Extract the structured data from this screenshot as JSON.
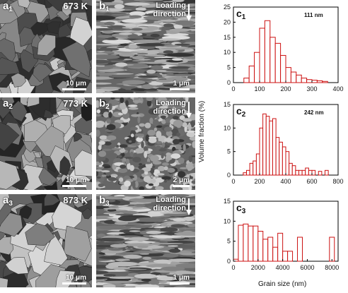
{
  "panels_a": [
    {
      "label": "a",
      "sub": "1",
      "temp": "673 K",
      "scalebar": "10 μm"
    },
    {
      "label": "a",
      "sub": "2",
      "temp": "773 K",
      "scalebar": "10 μm"
    },
    {
      "label": "a",
      "sub": "3",
      "temp": "873 K",
      "scalebar": "10 μm"
    }
  ],
  "panels_b": [
    {
      "label": "b",
      "sub": "1",
      "loading_line1": "Loading",
      "loading_line2": "direction",
      "scalebar": "1 μm"
    },
    {
      "label": "b",
      "sub": "2",
      "loading_line1": "Loading",
      "loading_line2": "direction",
      "scalebar": "2 μm"
    },
    {
      "label": "b",
      "sub": "3",
      "loading_line1": "Loading",
      "loading_line2": "direction",
      "scalebar": "1 μm"
    }
  ],
  "shared_ylabel": "Volume fraction (%)",
  "shared_xlabel": "Grain size (nm)",
  "chart_data": [
    {
      "type": "bar",
      "label": "c",
      "sub": "1",
      "annotation": "111 nm",
      "xlim": [
        0,
        400
      ],
      "ylim": [
        0,
        25
      ],
      "xticks": [
        0,
        100,
        200,
        300,
        400
      ],
      "yticks": [
        0,
        5,
        10,
        15,
        20,
        25
      ],
      "bin_width": 20,
      "bins": [
        {
          "x": 40,
          "v": 1.5
        },
        {
          "x": 60,
          "v": 5.5
        },
        {
          "x": 80,
          "v": 10
        },
        {
          "x": 100,
          "v": 18
        },
        {
          "x": 120,
          "v": 20.5
        },
        {
          "x": 140,
          "v": 15
        },
        {
          "x": 160,
          "v": 13
        },
        {
          "x": 180,
          "v": 9
        },
        {
          "x": 200,
          "v": 5
        },
        {
          "x": 220,
          "v": 3.5
        },
        {
          "x": 240,
          "v": 2.5
        },
        {
          "x": 260,
          "v": 1.5
        },
        {
          "x": 280,
          "v": 1
        },
        {
          "x": 300,
          "v": 0.8
        },
        {
          "x": 320,
          "v": 0.6
        },
        {
          "x": 340,
          "v": 0.4
        }
      ]
    },
    {
      "type": "bar",
      "label": "c",
      "sub": "2",
      "annotation": "242 nm",
      "xlim": [
        0,
        800
      ],
      "ylim": [
        0,
        15
      ],
      "xticks": [
        0,
        200,
        400,
        600,
        800
      ],
      "yticks": [
        0,
        5,
        10,
        15
      ],
      "bin_width": 25,
      "bins": [
        {
          "x": 75,
          "v": 0.5
        },
        {
          "x": 100,
          "v": 1
        },
        {
          "x": 125,
          "v": 2.5
        },
        {
          "x": 150,
          "v": 3
        },
        {
          "x": 175,
          "v": 4.5
        },
        {
          "x": 200,
          "v": 10
        },
        {
          "x": 225,
          "v": 13
        },
        {
          "x": 250,
          "v": 12.5
        },
        {
          "x": 275,
          "v": 11.5
        },
        {
          "x": 300,
          "v": 12
        },
        {
          "x": 325,
          "v": 8
        },
        {
          "x": 350,
          "v": 7
        },
        {
          "x": 375,
          "v": 6
        },
        {
          "x": 400,
          "v": 5
        },
        {
          "x": 425,
          "v": 2.5
        },
        {
          "x": 450,
          "v": 2
        },
        {
          "x": 475,
          "v": 1
        },
        {
          "x": 500,
          "v": 1
        },
        {
          "x": 525,
          "v": 1
        },
        {
          "x": 550,
          "v": 1.5
        },
        {
          "x": 575,
          "v": 1
        },
        {
          "x": 600,
          "v": 1
        },
        {
          "x": 650,
          "v": 0.8
        },
        {
          "x": 700,
          "v": 1
        }
      ]
    },
    {
      "type": "bar",
      "label": "c",
      "sub": "3",
      "xlim": [
        0,
        8500
      ],
      "ylim": [
        0,
        15
      ],
      "xticks": [
        0,
        2000,
        4000,
        6000,
        8000
      ],
      "yticks": [
        0,
        5,
        10,
        15
      ],
      "bin_width": 400,
      "bins": [
        {
          "x": 0,
          "v": 0.5
        },
        {
          "x": 400,
          "v": 9
        },
        {
          "x": 800,
          "v": 9.3
        },
        {
          "x": 1200,
          "v": 8.8
        },
        {
          "x": 1600,
          "v": 8.8
        },
        {
          "x": 2000,
          "v": 7.5
        },
        {
          "x": 2400,
          "v": 5.5
        },
        {
          "x": 2800,
          "v": 6
        },
        {
          "x": 3200,
          "v": 3.5
        },
        {
          "x": 3600,
          "v": 7
        },
        {
          "x": 4000,
          "v": 2.5
        },
        {
          "x": 4400,
          "v": 2.5
        },
        {
          "x": 5200,
          "v": 6
        },
        {
          "x": 7800,
          "v": 6
        }
      ]
    }
  ]
}
